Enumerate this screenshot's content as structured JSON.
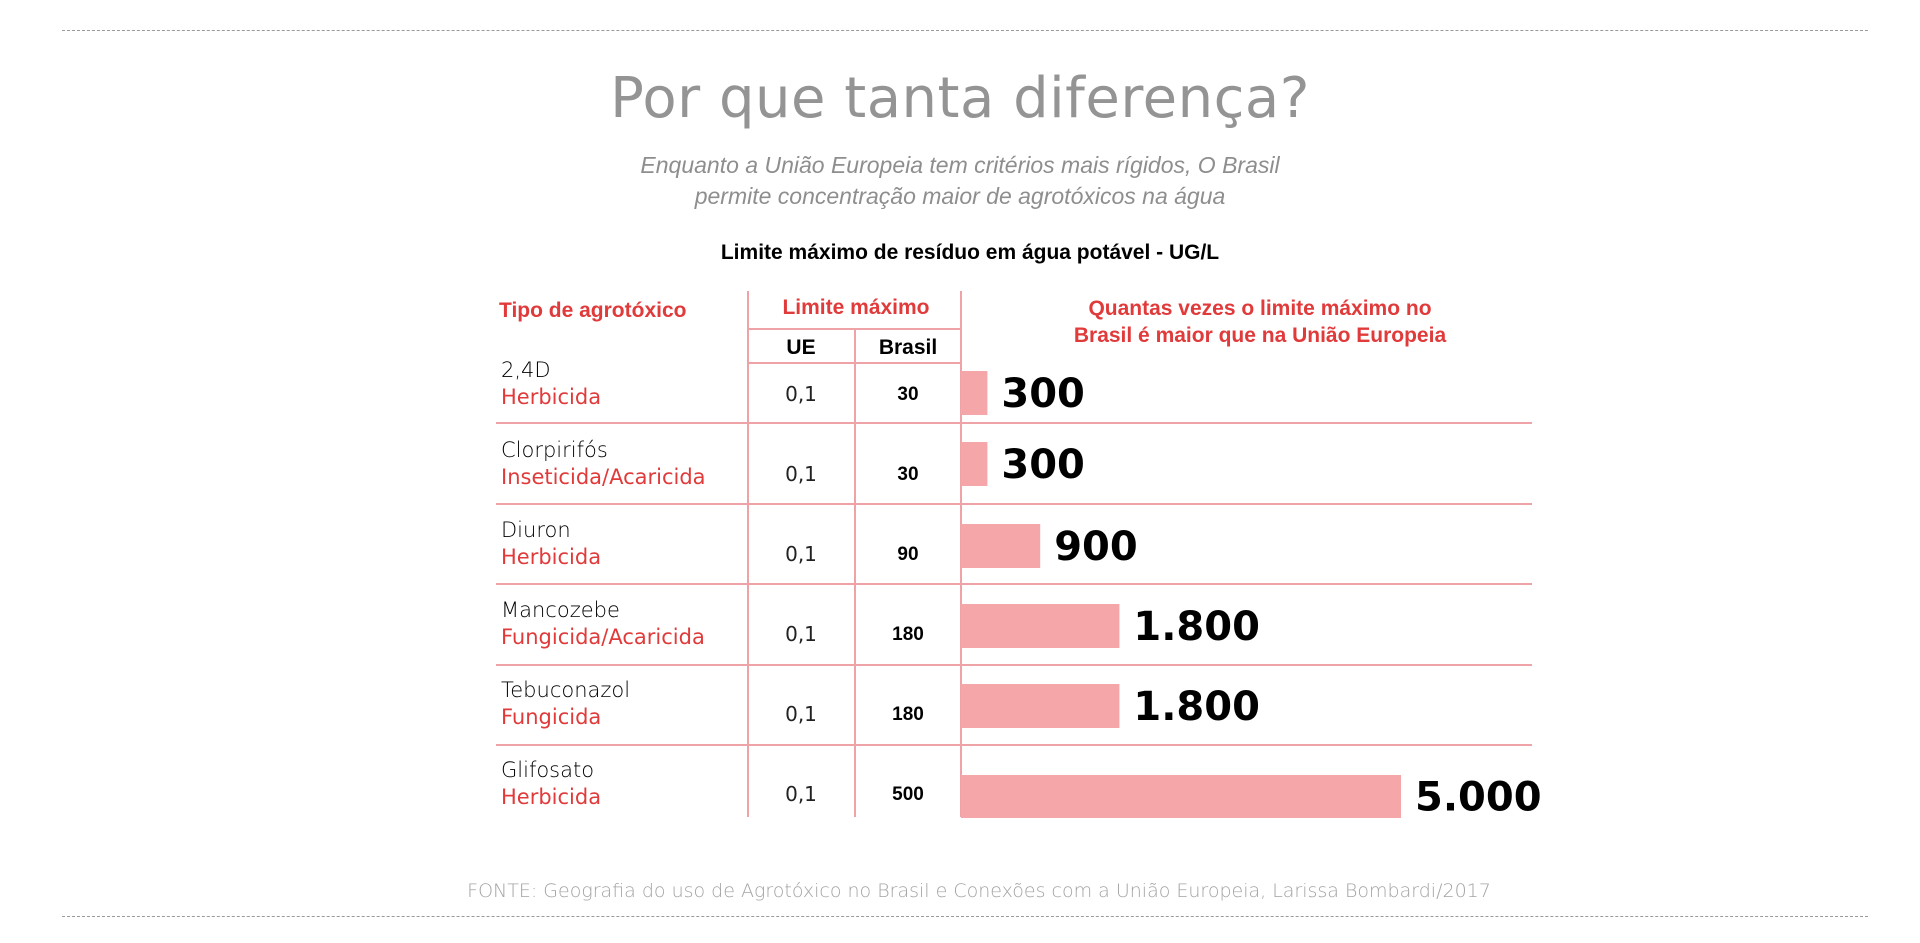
{
  "title": "Por que tanta diferença?",
  "subtitle_line1": "Enquanto a União Europeia tem critérios mais rígidos, O Brasil",
  "subtitle_line2": "permite concentração maior de agrotóxicos na água",
  "table_title": "Limite máximo de resíduo em água potável - UG/L",
  "headers": {
    "tipo": "Tipo de agrotóxico",
    "limite": "Limite máximo",
    "ue": "UE",
    "brasil": "Brasil",
    "quantas_line1": "Quantas vezes o limite máximo no",
    "quantas_line2": "Brasil é maior que na União Europeia"
  },
  "source": "FONTE: Geografia do uso de Agrotóxico no Brasil e Conexões com a União Europeia, Larissa Bombardi/2017",
  "colors": {
    "accent": "#e03a3a",
    "bar": "#f4a6a8",
    "grid": "#f0a3a6"
  },
  "chart_data": {
    "type": "bar",
    "orientation": "horizontal",
    "categories": [
      "2,4D",
      "Clorpirifós",
      "Diuron",
      "Mancozebe",
      "Tebuconazol",
      "Glifosato"
    ],
    "category_types": [
      "Herbicida",
      "Inseticida/Acaricida",
      "Herbicida",
      "Fungicida/Acaricida",
      "Fungicida",
      "Herbicida"
    ],
    "ue_values": [
      "0,1",
      "0,1",
      "0,1",
      "0,1",
      "0,1",
      "0,1"
    ],
    "brasil_values": [
      "30",
      "30",
      "90",
      "180",
      "180",
      "500"
    ],
    "values": [
      300,
      300,
      900,
      1800,
      1800,
      5000
    ],
    "value_labels": [
      "300",
      "300",
      "900",
      "1.800",
      "1.800",
      "5.000"
    ],
    "xlim": [
      0,
      5000
    ],
    "grid": false
  }
}
